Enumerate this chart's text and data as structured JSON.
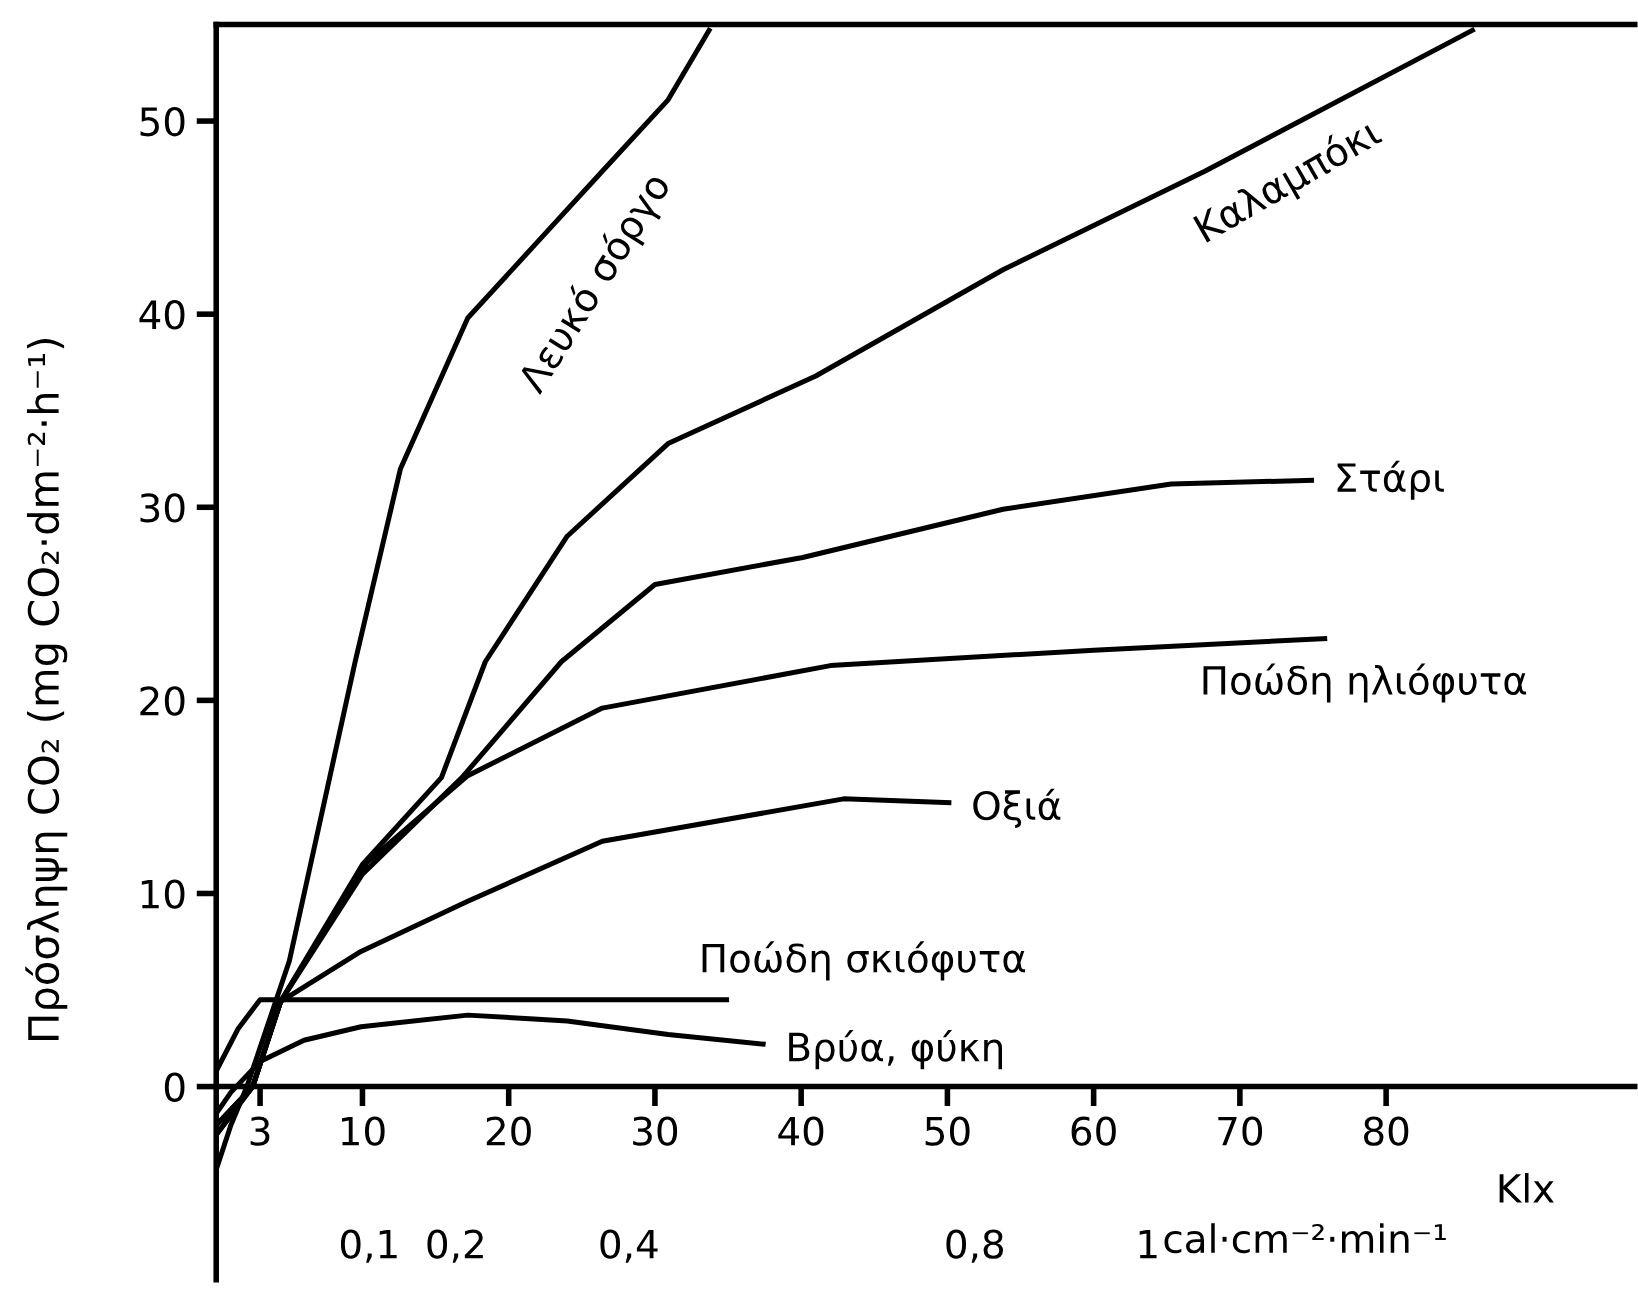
{
  "chart_data": {
    "type": "line",
    "ylabel": "Πρόσληψη CO₂ (mg CO₂·dm⁻²·h⁻¹)",
    "xlabel": "Klx",
    "x2label": "cal·cm⁻²·min⁻¹",
    "xlim": [
      0,
      97
    ],
    "xticks": [
      3,
      10,
      20,
      30,
      40,
      50,
      60,
      70,
      80
    ],
    "x2lim": [
      -0.077,
      1.563
    ],
    "x2ticks": [
      {
        "value": 0.1,
        "label": "0,1"
      },
      {
        "value": 0.2,
        "label": "0,2"
      },
      {
        "value": 0.4,
        "label": "0,4"
      },
      {
        "value": 0.8,
        "label": "0,8"
      },
      {
        "value": 1,
        "label": "1"
      }
    ],
    "ylim": [
      -10,
      55
    ],
    "yticks": [
      0,
      10,
      20,
      30,
      40,
      50
    ],
    "grid": false,
    "legend": false,
    "series": [
      {
        "name": "Λευκό σόργο",
        "color": "#000000",
        "x": [
          0,
          1,
          2.1,
          5,
          9.5,
          12.6,
          17.2,
          21.8,
          26.4,
          30.9,
          33.7
        ],
        "values": [
          -4.3,
          -2.0,
          0,
          6.5,
          22,
          32,
          39.8,
          43.6,
          47.4,
          51.1,
          54.7
        ]
      },
      {
        "name": "Καλαμπόκι",
        "color": "#000000",
        "x": [
          0,
          2.5,
          4.4,
          10,
          15.4,
          18.4,
          24,
          30.9,
          41,
          53.8,
          67.6,
          85.9
        ],
        "values": [
          -2.5,
          0,
          4.4,
          11.5,
          16,
          22,
          28.5,
          33.3,
          36.8,
          42.3,
          47.4,
          54.7
        ]
      },
      {
        "name": "Στάρι",
        "color": "#000000",
        "x": [
          0,
          2.5,
          4.4,
          10,
          16.8,
          23.6,
          30,
          40.1,
          53.8,
          65.3,
          74.9
        ],
        "values": [
          -2.5,
          0,
          4.4,
          11,
          16,
          22,
          26,
          27.4,
          29.9,
          31.2,
          31.4
        ]
      },
      {
        "name": "Ποώδη ηλιόφυτα",
        "color": "#000000",
        "x": [
          0,
          2.5,
          4.4,
          10.3,
          17.2,
          26.4,
          42,
          60,
          75.8
        ],
        "values": [
          -2,
          0,
          4.4,
          11.6,
          16.1,
          19.6,
          21.8,
          22.6,
          23.2
        ]
      },
      {
        "name": "Οξιά",
        "color": "#000000",
        "x": [
          0,
          2.5,
          4.4,
          9.9,
          17.2,
          26.4,
          42.9,
          50.1
        ],
        "values": [
          -2,
          0,
          4.4,
          7,
          9.6,
          12.7,
          14.9,
          14.7
        ]
      },
      {
        "name": "Ποώδη σκιόφυτα",
        "color": "#000000",
        "x": [
          0,
          1.5,
          3,
          34.9
        ],
        "values": [
          0.8,
          3,
          4.5,
          4.5
        ]
      },
      {
        "name": "Βρύα, φύκη",
        "color": "#000000",
        "x": [
          0,
          1,
          3,
          6,
          9.9,
          17.2,
          24,
          30.9,
          37.4
        ],
        "values": [
          -1.4,
          -0.3,
          1.3,
          2.4,
          3.1,
          3.7,
          3.4,
          2.7,
          2.2
        ]
      }
    ]
  }
}
